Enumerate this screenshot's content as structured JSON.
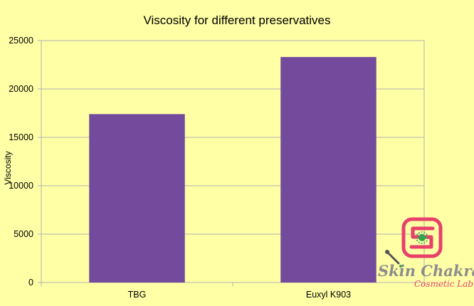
{
  "chart_data": {
    "type": "bar",
    "title": "Viscosity for different preservatives",
    "xlabel": "",
    "ylabel": "Viscosity",
    "categories": [
      "TBG",
      "Euxyl K903"
    ],
    "series": [
      {
        "values": [
          17400,
          23300
        ]
      }
    ],
    "ylim": [
      0,
      25000
    ],
    "yticks": [
      0,
      5000,
      10000,
      15000,
      20000,
      25000
    ],
    "grid": true,
    "legend": "none"
  },
  "colors": {
    "background": "#ffffa6",
    "bar": "#744b9c",
    "grid": "#b3b3b3",
    "logo_accent": "#e8406a"
  },
  "logo": {
    "name": "Skin Chakra",
    "tagline": "Cosmetic Lab"
  }
}
